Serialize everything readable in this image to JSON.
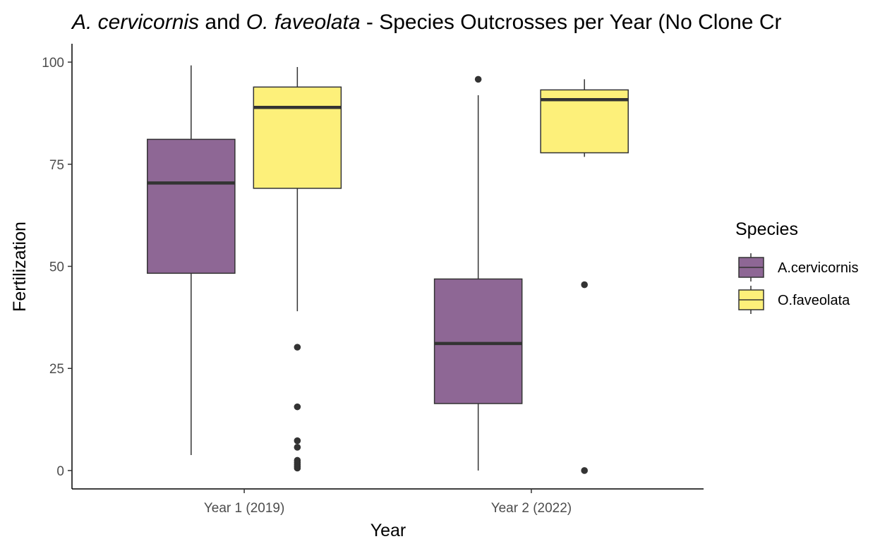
{
  "chart_data": {
    "type": "boxplot",
    "title_parts": [
      {
        "text": "A. cervicornis",
        "italic": true
      },
      {
        "text": " and ",
        "italic": false
      },
      {
        "text": "O. faveolata",
        "italic": true
      },
      {
        "text": " - Species Outcrosses per Year (No Clone Cr",
        "italic": false
      }
    ],
    "xlabel": "Year",
    "ylabel": "Fertilization",
    "ylim": [
      -4.5,
      104.5
    ],
    "yticks": [
      0,
      25,
      50,
      75,
      100
    ],
    "ytick_labels": [
      "0",
      "25",
      "50",
      "75",
      "100"
    ],
    "categories": [
      "Year 1 (2019)",
      "Year 2 (2022)"
    ],
    "grid": false,
    "legend": {
      "title": "Species",
      "position": "right",
      "entries": [
        {
          "label": "A.cervicornis",
          "color": "#8e6795"
        },
        {
          "label": "O.faveolata",
          "color": "#fdf07a"
        }
      ]
    },
    "series": [
      {
        "name": "A.cervicornis",
        "color": "#8e6795",
        "boxes": [
          {
            "category": "Year 1 (2019)",
            "whisker_low": 3.8,
            "q1": 48.3,
            "median": 70.4,
            "q3": 81.1,
            "whisker_high": 99.2,
            "outliers": []
          },
          {
            "category": "Year 2 (2022)",
            "whisker_low": 0,
            "q1": 16.4,
            "median": 31.1,
            "q3": 46.9,
            "whisker_high": 91.9,
            "outliers": [
              95.8
            ]
          }
        ]
      },
      {
        "name": "O.faveolata",
        "color": "#fdf07a",
        "boxes": [
          {
            "category": "Year 1 (2019)",
            "whisker_low": 39,
            "q1": 69.1,
            "median": 88.9,
            "q3": 93.9,
            "whisker_high": 98.8,
            "outliers": [
              30.2,
              15.6,
              7.3,
              5.7,
              2.5,
              2.0,
              1.5,
              1.0,
              0.6
            ]
          },
          {
            "category": "Year 2 (2022)",
            "whisker_low": 76.8,
            "q1": 77.8,
            "median": 90.8,
            "q3": 93.2,
            "whisker_high": 95.8,
            "outliers": [
              45.5,
              0
            ]
          }
        ]
      }
    ]
  }
}
